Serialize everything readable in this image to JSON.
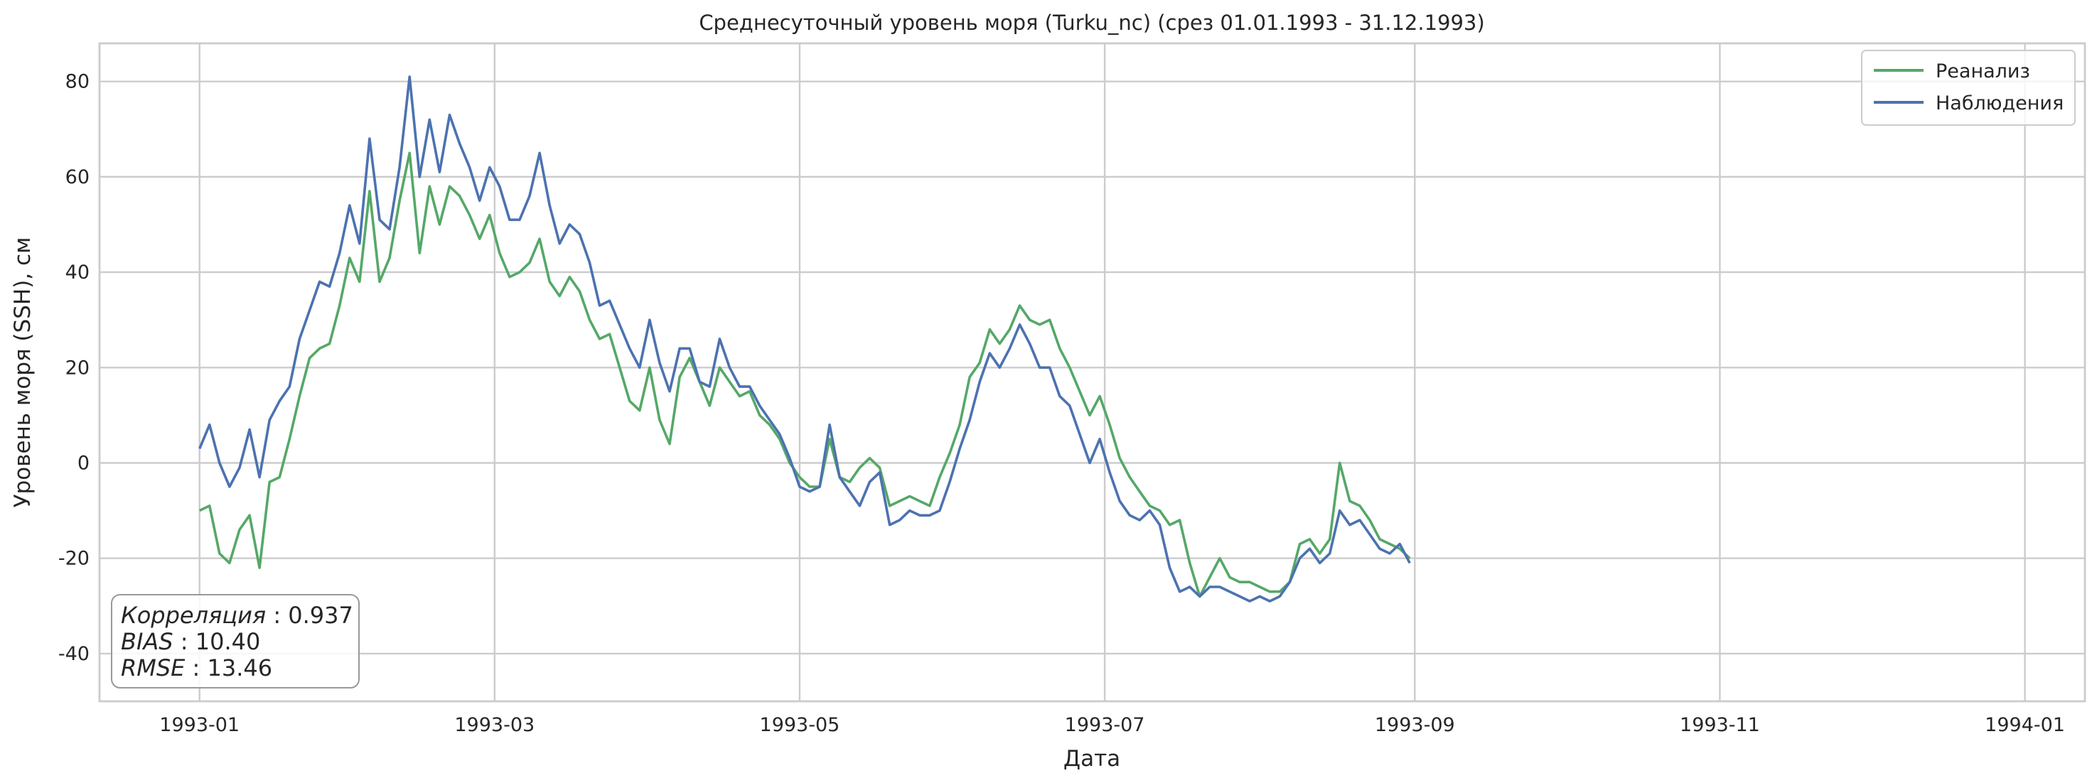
{
  "colors": {
    "reanalysis": "#55a868",
    "observations": "#4c72b0",
    "grid": "#cccccc",
    "text": "#262626"
  },
  "chart_data": {
    "type": "line",
    "title": "Среднесуточный уровень моря (Turku_nc) (срез 01.01.1993 - 31.12.1993)",
    "xlabel": "Дата",
    "ylabel": "Уровень моря (SSH), см",
    "xlim": [
      "1992-12-12",
      "1994-01-13"
    ],
    "ylim": [
      -50,
      88
    ],
    "x_ticks": [
      {
        "date": "1993-01-01",
        "label": "1993-01"
      },
      {
        "date": "1993-03-01",
        "label": "1993-03"
      },
      {
        "date": "1993-05-01",
        "label": "1993-05"
      },
      {
        "date": "1993-07-01",
        "label": "1993-07"
      },
      {
        "date": "1993-09-01",
        "label": "1993-09"
      },
      {
        "date": "1993-11-01",
        "label": "1993-11"
      },
      {
        "date": "1994-01-01",
        "label": "1994-01"
      }
    ],
    "y_ticks": [
      -40,
      -20,
      0,
      20,
      40,
      60,
      80
    ],
    "grid": true,
    "legend_position": "top-right",
    "stats": {
      "lines": [
        {
          "label": "Корреляция",
          "value": "0.937"
        },
        {
          "label": "BIAS",
          "value": "10.40"
        },
        {
          "label": "RMSE",
          "value": "13.46"
        }
      ]
    },
    "series": [
      {
        "name": "Реанализ",
        "color": "#55a868",
        "points": [
          [
            "1993-01-01",
            -10
          ],
          [
            "1993-01-03",
            -9
          ],
          [
            "1993-01-05",
            -19
          ],
          [
            "1993-01-07",
            -21
          ],
          [
            "1993-01-09",
            -14
          ],
          [
            "1993-01-11",
            -11
          ],
          [
            "1993-01-13",
            -22
          ],
          [
            "1993-01-15",
            -4
          ],
          [
            "1993-01-17",
            -3
          ],
          [
            "1993-01-19",
            5
          ],
          [
            "1993-01-21",
            14
          ],
          [
            "1993-01-23",
            22
          ],
          [
            "1993-01-25",
            24
          ],
          [
            "1993-01-27",
            25
          ],
          [
            "1993-01-29",
            33
          ],
          [
            "1993-01-31",
            43
          ],
          [
            "1993-02-02",
            38
          ],
          [
            "1993-02-04",
            57
          ],
          [
            "1993-02-06",
            38
          ],
          [
            "1993-02-08",
            43
          ],
          [
            "1993-02-10",
            55
          ],
          [
            "1993-02-12",
            65
          ],
          [
            "1993-02-14",
            44
          ],
          [
            "1993-02-16",
            58
          ],
          [
            "1993-02-18",
            50
          ],
          [
            "1993-02-20",
            58
          ],
          [
            "1993-02-22",
            56
          ],
          [
            "1993-02-24",
            52
          ],
          [
            "1993-02-26",
            47
          ],
          [
            "1993-02-28",
            52
          ],
          [
            "1993-03-02",
            44
          ],
          [
            "1993-03-04",
            39
          ],
          [
            "1993-03-06",
            40
          ],
          [
            "1993-03-08",
            42
          ],
          [
            "1993-03-10",
            47
          ],
          [
            "1993-03-12",
            38
          ],
          [
            "1993-03-14",
            35
          ],
          [
            "1993-03-16",
            39
          ],
          [
            "1993-03-18",
            36
          ],
          [
            "1993-03-20",
            30
          ],
          [
            "1993-03-22",
            26
          ],
          [
            "1993-03-24",
            27
          ],
          [
            "1993-03-26",
            20
          ],
          [
            "1993-03-28",
            13
          ],
          [
            "1993-03-30",
            11
          ],
          [
            "1993-04-01",
            20
          ],
          [
            "1993-04-03",
            9
          ],
          [
            "1993-04-05",
            4
          ],
          [
            "1993-04-07",
            18
          ],
          [
            "1993-04-09",
            22
          ],
          [
            "1993-04-11",
            17
          ],
          [
            "1993-04-13",
            12
          ],
          [
            "1993-04-15",
            20
          ],
          [
            "1993-04-17",
            17
          ],
          [
            "1993-04-19",
            14
          ],
          [
            "1993-04-21",
            15
          ],
          [
            "1993-04-23",
            10
          ],
          [
            "1993-04-25",
            8
          ],
          [
            "1993-04-27",
            5
          ],
          [
            "1993-04-29",
            0
          ],
          [
            "1993-05-01",
            -3
          ],
          [
            "1993-05-03",
            -5
          ],
          [
            "1993-05-05",
            -5
          ],
          [
            "1993-05-07",
            5
          ],
          [
            "1993-05-09",
            -3
          ],
          [
            "1993-05-11",
            -4
          ],
          [
            "1993-05-13",
            -1
          ],
          [
            "1993-05-15",
            1
          ],
          [
            "1993-05-17",
            -1
          ],
          [
            "1993-05-19",
            -9
          ],
          [
            "1993-05-21",
            -8
          ],
          [
            "1993-05-23",
            -7
          ],
          [
            "1993-05-25",
            -8
          ],
          [
            "1993-05-27",
            -9
          ],
          [
            "1993-05-29",
            -3
          ],
          [
            "1993-05-31",
            2
          ],
          [
            "1993-06-02",
            8
          ],
          [
            "1993-06-04",
            18
          ],
          [
            "1993-06-06",
            21
          ],
          [
            "1993-06-08",
            28
          ],
          [
            "1993-06-10",
            25
          ],
          [
            "1993-06-12",
            28
          ],
          [
            "1993-06-14",
            33
          ],
          [
            "1993-06-16",
            30
          ],
          [
            "1993-06-18",
            29
          ],
          [
            "1993-06-20",
            30
          ],
          [
            "1993-06-22",
            24
          ],
          [
            "1993-06-24",
            20
          ],
          [
            "1993-06-26",
            15
          ],
          [
            "1993-06-28",
            10
          ],
          [
            "1993-06-30",
            14
          ],
          [
            "1993-07-02",
            8
          ],
          [
            "1993-07-04",
            1
          ],
          [
            "1993-07-06",
            -3
          ],
          [
            "1993-07-08",
            -6
          ],
          [
            "1993-07-10",
            -9
          ],
          [
            "1993-07-12",
            -10
          ],
          [
            "1993-07-14",
            -13
          ],
          [
            "1993-07-16",
            -12
          ],
          [
            "1993-07-18",
            -21
          ],
          [
            "1993-07-20",
            -28
          ],
          [
            "1993-07-22",
            -24
          ],
          [
            "1993-07-24",
            -20
          ],
          [
            "1993-07-26",
            -24
          ],
          [
            "1993-07-28",
            -25
          ],
          [
            "1993-07-30",
            -25
          ],
          [
            "1993-08-01",
            -26
          ],
          [
            "1993-08-03",
            -27
          ],
          [
            "1993-08-05",
            -27
          ],
          [
            "1993-08-07",
            -25
          ],
          [
            "1993-08-09",
            -17
          ],
          [
            "1993-08-11",
            -16
          ],
          [
            "1993-08-13",
            -19
          ],
          [
            "1993-08-15",
            -16
          ],
          [
            "1993-08-17",
            0
          ],
          [
            "1993-08-19",
            -8
          ],
          [
            "1993-08-21",
            -9
          ],
          [
            "1993-08-23",
            -12
          ],
          [
            "1993-08-25",
            -16
          ],
          [
            "1993-08-27",
            -17
          ],
          [
            "1993-08-29",
            -18
          ],
          [
            "1993-08-31",
            -20
          ]
        ]
      },
      {
        "name": "Наблюдения",
        "color": "#4c72b0",
        "points": [
          [
            "1993-01-01",
            3
          ],
          [
            "1993-01-03",
            8
          ],
          [
            "1993-01-05",
            0
          ],
          [
            "1993-01-07",
            -5
          ],
          [
            "1993-01-09",
            -1
          ],
          [
            "1993-01-11",
            7
          ],
          [
            "1993-01-13",
            -3
          ],
          [
            "1993-01-15",
            9
          ],
          [
            "1993-01-17",
            13
          ],
          [
            "1993-01-19",
            16
          ],
          [
            "1993-01-21",
            26
          ],
          [
            "1993-01-23",
            32
          ],
          [
            "1993-01-25",
            38
          ],
          [
            "1993-01-27",
            37
          ],
          [
            "1993-01-29",
            44
          ],
          [
            "1993-01-31",
            54
          ],
          [
            "1993-02-02",
            46
          ],
          [
            "1993-02-04",
            68
          ],
          [
            "1993-02-06",
            51
          ],
          [
            "1993-02-08",
            49
          ],
          [
            "1993-02-10",
            62
          ],
          [
            "1993-02-12",
            81
          ],
          [
            "1993-02-14",
            60
          ],
          [
            "1993-02-16",
            72
          ],
          [
            "1993-02-18",
            61
          ],
          [
            "1993-02-20",
            73
          ],
          [
            "1993-02-22",
            67
          ],
          [
            "1993-02-24",
            62
          ],
          [
            "1993-02-26",
            55
          ],
          [
            "1993-02-28",
            62
          ],
          [
            "1993-03-02",
            58
          ],
          [
            "1993-03-04",
            51
          ],
          [
            "1993-03-06",
            51
          ],
          [
            "1993-03-08",
            56
          ],
          [
            "1993-03-10",
            65
          ],
          [
            "1993-03-12",
            54
          ],
          [
            "1993-03-14",
            46
          ],
          [
            "1993-03-16",
            50
          ],
          [
            "1993-03-18",
            48
          ],
          [
            "1993-03-20",
            42
          ],
          [
            "1993-03-22",
            33
          ],
          [
            "1993-03-24",
            34
          ],
          [
            "1993-03-26",
            29
          ],
          [
            "1993-03-28",
            24
          ],
          [
            "1993-03-30",
            20
          ],
          [
            "1993-04-01",
            30
          ],
          [
            "1993-04-03",
            21
          ],
          [
            "1993-04-05",
            15
          ],
          [
            "1993-04-07",
            24
          ],
          [
            "1993-04-09",
            24
          ],
          [
            "1993-04-11",
            17
          ],
          [
            "1993-04-13",
            16
          ],
          [
            "1993-04-15",
            26
          ],
          [
            "1993-04-17",
            20
          ],
          [
            "1993-04-19",
            16
          ],
          [
            "1993-04-21",
            16
          ],
          [
            "1993-04-23",
            12
          ],
          [
            "1993-04-25",
            9
          ],
          [
            "1993-04-27",
            6
          ],
          [
            "1993-04-29",
            1
          ],
          [
            "1993-05-01",
            -5
          ],
          [
            "1993-05-03",
            -6
          ],
          [
            "1993-05-05",
            -5
          ],
          [
            "1993-05-07",
            8
          ],
          [
            "1993-05-09",
            -3
          ],
          [
            "1993-05-11",
            -6
          ],
          [
            "1993-05-13",
            -9
          ],
          [
            "1993-05-15",
            -4
          ],
          [
            "1993-05-17",
            -2
          ],
          [
            "1993-05-19",
            -13
          ],
          [
            "1993-05-21",
            -12
          ],
          [
            "1993-05-23",
            -10
          ],
          [
            "1993-05-25",
            -11
          ],
          [
            "1993-05-27",
            -11
          ],
          [
            "1993-05-29",
            -10
          ],
          [
            "1993-05-31",
            -4
          ],
          [
            "1993-06-02",
            3
          ],
          [
            "1993-06-04",
            9
          ],
          [
            "1993-06-06",
            17
          ],
          [
            "1993-06-08",
            23
          ],
          [
            "1993-06-10",
            20
          ],
          [
            "1993-06-12",
            24
          ],
          [
            "1993-06-14",
            29
          ],
          [
            "1993-06-16",
            25
          ],
          [
            "1993-06-18",
            20
          ],
          [
            "1993-06-20",
            20
          ],
          [
            "1993-06-22",
            14
          ],
          [
            "1993-06-24",
            12
          ],
          [
            "1993-06-26",
            6
          ],
          [
            "1993-06-28",
            0
          ],
          [
            "1993-06-30",
            5
          ],
          [
            "1993-07-02",
            -2
          ],
          [
            "1993-07-04",
            -8
          ],
          [
            "1993-07-06",
            -11
          ],
          [
            "1993-07-08",
            -12
          ],
          [
            "1993-07-10",
            -10
          ],
          [
            "1993-07-12",
            -13
          ],
          [
            "1993-07-14",
            -22
          ],
          [
            "1993-07-16",
            -27
          ],
          [
            "1993-07-18",
            -26
          ],
          [
            "1993-07-20",
            -28
          ],
          [
            "1993-07-22",
            -26
          ],
          [
            "1993-07-24",
            -26
          ],
          [
            "1993-07-26",
            -27
          ],
          [
            "1993-07-28",
            -28
          ],
          [
            "1993-07-30",
            -29
          ],
          [
            "1993-08-01",
            -28
          ],
          [
            "1993-08-03",
            -29
          ],
          [
            "1993-08-05",
            -28
          ],
          [
            "1993-08-07",
            -25
          ],
          [
            "1993-08-09",
            -20
          ],
          [
            "1993-08-11",
            -18
          ],
          [
            "1993-08-13",
            -21
          ],
          [
            "1993-08-15",
            -19
          ],
          [
            "1993-08-17",
            -10
          ],
          [
            "1993-08-19",
            -13
          ],
          [
            "1993-08-21",
            -12
          ],
          [
            "1993-08-23",
            -15
          ],
          [
            "1993-08-25",
            -18
          ],
          [
            "1993-08-27",
            -19
          ],
          [
            "1993-08-29",
            -17
          ],
          [
            "1993-08-31",
            -21
          ]
        ]
      }
    ]
  }
}
